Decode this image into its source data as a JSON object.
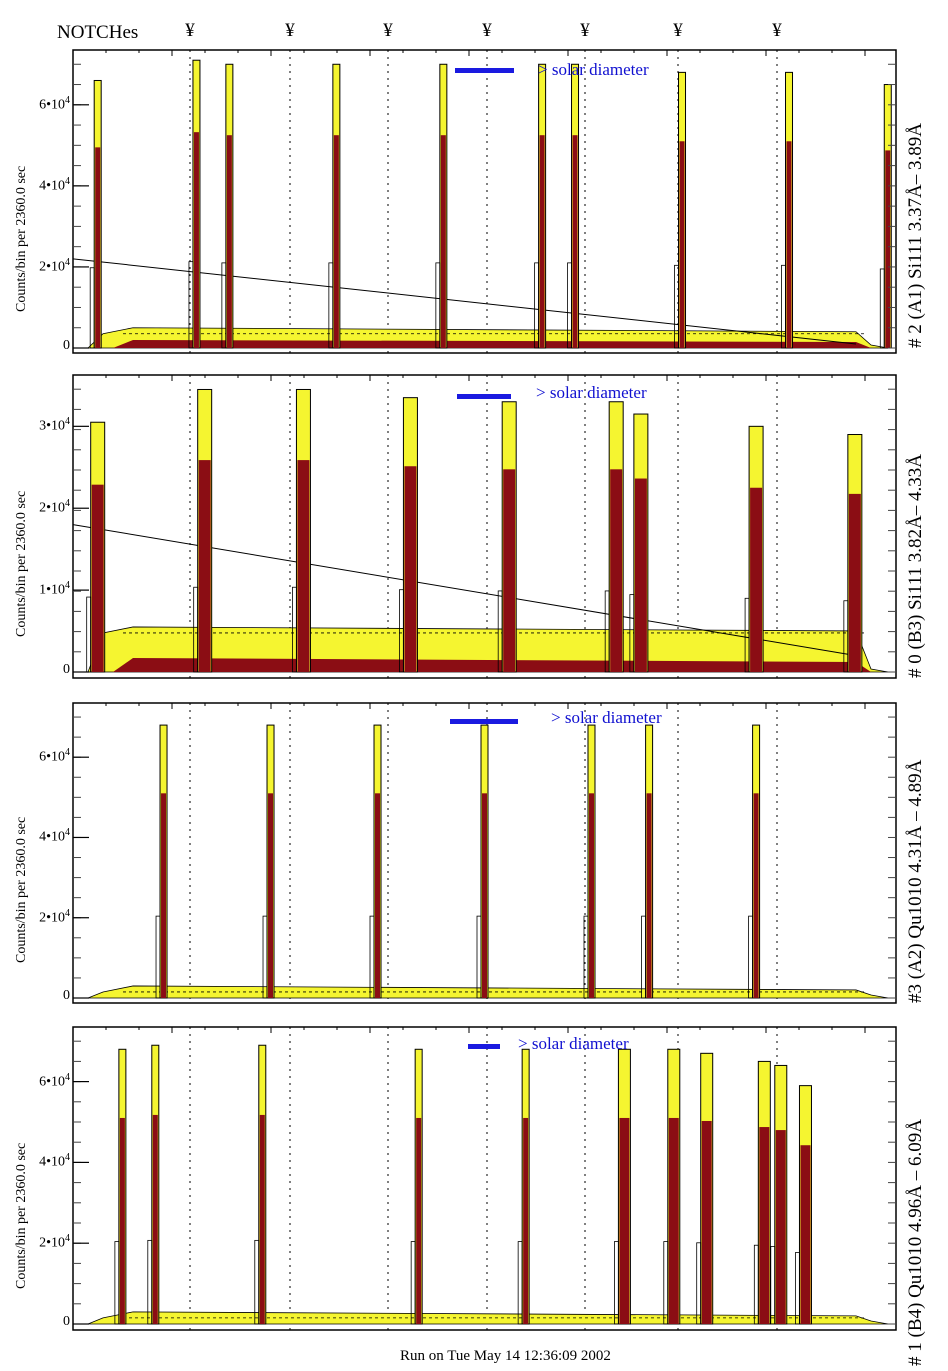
{
  "header": {
    "notches_label": "NOTCHes",
    "notch_symbol": "¥",
    "notch_count": 7
  },
  "colors": {
    "yellow_fill": "#f5f530",
    "red_fill": "#8b0d14",
    "solar_bar": "#1a1ae0",
    "solar_text": "#1010d0",
    "axis": "#000000"
  },
  "footer": {
    "run_text": "Run on Tue May 14 12:36:09 2002"
  },
  "chart_data": [
    {
      "type": "bar",
      "panel_title": "# 2 (A1) Si111  3.37Å– 3.89Å",
      "ylabel": "Counts/bin per   2360.0 sec",
      "ylim": [
        0,
        75000
      ],
      "yticks": [
        0,
        20000,
        40000,
        60000
      ],
      "ytick_labels": [
        "0",
        "2•10",
        "4•10",
        "6•10"
      ],
      "ytick_exp": "4",
      "annotation": "> solar diameter",
      "series": [
        {
          "name": "peaks",
          "x": [
            0.03,
            0.15,
            0.19,
            0.32,
            0.45,
            0.57,
            0.61,
            0.74,
            0.87,
            0.99
          ],
          "values": [
            66000,
            71000,
            70000,
            70000,
            70000,
            70000,
            70000,
            68000,
            68000,
            65000
          ]
        },
        {
          "name": "background",
          "value": 5000
        },
        {
          "name": "trend_line",
          "start": 22000,
          "end": 1000
        }
      ]
    },
    {
      "type": "bar",
      "panel_title": "# 0 (B3) Si111  3.82Å– 4.33Å",
      "ylabel": "Counts/bin per   2360.0 sec",
      "ylim": [
        0,
        37000
      ],
      "yticks": [
        0,
        10000,
        20000,
        30000
      ],
      "ytick_labels": [
        "0",
        "1•10",
        "2•10",
        "3•10"
      ],
      "ytick_exp": "4",
      "annotation": "> solar diameter",
      "series": [
        {
          "name": "peaks",
          "x": [
            0.03,
            0.16,
            0.28,
            0.41,
            0.53,
            0.66,
            0.69,
            0.83,
            0.95
          ],
          "values": [
            30500,
            34500,
            34500,
            33500,
            33000,
            33000,
            31500,
            30000,
            29000
          ]
        },
        {
          "name": "background",
          "value": 5500
        },
        {
          "name": "trend_line",
          "start": 18000,
          "end": 2000
        }
      ]
    },
    {
      "type": "bar",
      "panel_title": "#3 (A2) Qu1010  4.31Å – 4.89Å",
      "ylabel": "Counts/bin per   2360.0 sec",
      "ylim": [
        0,
        75000
      ],
      "yticks": [
        0,
        20000,
        40000,
        60000
      ],
      "ytick_labels": [
        "0",
        "2•10",
        "4•10",
        "6•10"
      ],
      "ytick_exp": "4",
      "annotation": "> solar diameter",
      "series": [
        {
          "name": "peaks",
          "x": [
            0.11,
            0.24,
            0.37,
            0.5,
            0.63,
            0.7,
            0.83
          ],
          "values": [
            68000,
            68000,
            68000,
            68000,
            68000,
            68000,
            68000
          ]
        },
        {
          "name": "background",
          "value": 3000
        }
      ]
    },
    {
      "type": "bar",
      "panel_title": "# 1 (B4) Qu1010 4.96Å – 6.09Å",
      "ylabel": "Counts/bin per   2360.0 sec",
      "ylim": [
        0,
        75000
      ],
      "yticks": [
        0,
        20000,
        40000,
        60000
      ],
      "ytick_labels": [
        "0",
        "2•10",
        "4•10",
        "6•10"
      ],
      "ytick_exp": "4",
      "annotation": "> solar diameter",
      "series": [
        {
          "name": "peaks",
          "x": [
            0.06,
            0.1,
            0.23,
            0.42,
            0.55,
            0.67,
            0.73,
            0.77,
            0.84,
            0.86,
            0.89
          ],
          "values": [
            68000,
            69000,
            69000,
            68000,
            68000,
            68000,
            68000,
            67000,
            65000,
            64000,
            59000
          ]
        },
        {
          "name": "background",
          "value": 3000
        }
      ]
    }
  ]
}
